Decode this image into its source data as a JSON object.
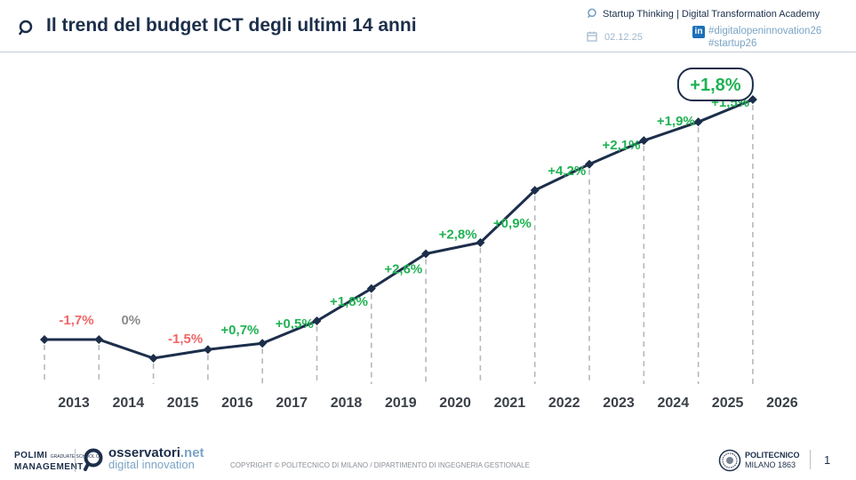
{
  "header": {
    "title": "Il trend del budget ICT degli ultimi 14 anni",
    "academy": "Startup Thinking | Digital Transformation Academy",
    "date": "02.12.25",
    "tag1": "#digitalopeninnovation26",
    "tag2": "#startup26",
    "linkedin_badge": "in"
  },
  "chart_data": {
    "type": "line",
    "title": "Il trend del budget ICT degli ultimi 14 anni",
    "xlabel": "",
    "ylabel": "",
    "categories": [
      "2013",
      "2014",
      "2015",
      "2016",
      "2017",
      "2018",
      "2019",
      "2020",
      "2021",
      "2022",
      "2023",
      "2024",
      "2025",
      "2026"
    ],
    "values": [
      -1.7,
      0,
      -1.5,
      0.7,
      0.5,
      1.8,
      2.6,
      2.8,
      0.9,
      4.2,
      2.1,
      1.9,
      1.5,
      1.8
    ],
    "labels": [
      "-1,7%",
      "0%",
      "-1,5%",
      "+0,7%",
      "+0,5%",
      "+1,8%",
      "+2,6%",
      "+2,8%",
      "+0,9%",
      "+4,2%",
      "+2,1%",
      "+1,9%",
      "+1,5%",
      "+1,8%"
    ],
    "highlight_index": 13,
    "grid": false,
    "colors": {
      "line": "#1c2e4a",
      "positive": "#21b254",
      "negative": "#f06767",
      "zero": "#8c8c8c",
      "drop_line": "#b3b8bf"
    }
  },
  "footer": {
    "polimi_line1": "POLIMI",
    "polimi_small": "GRADUATE SCHOOL OF",
    "polimi_line2": "MANAGEMENT",
    "oss_name": "osservatori",
    "oss_tld": ".net",
    "oss_sub": "digital innovation",
    "copyright": "COPYRIGHT © POLITECNICO DI MILANO / DIPARTIMENTO DI INGEGNERIA GESTIONALE",
    "poli_name": "POLITECNICO",
    "poli_sub": "MILANO 1863",
    "page_number": "1"
  }
}
